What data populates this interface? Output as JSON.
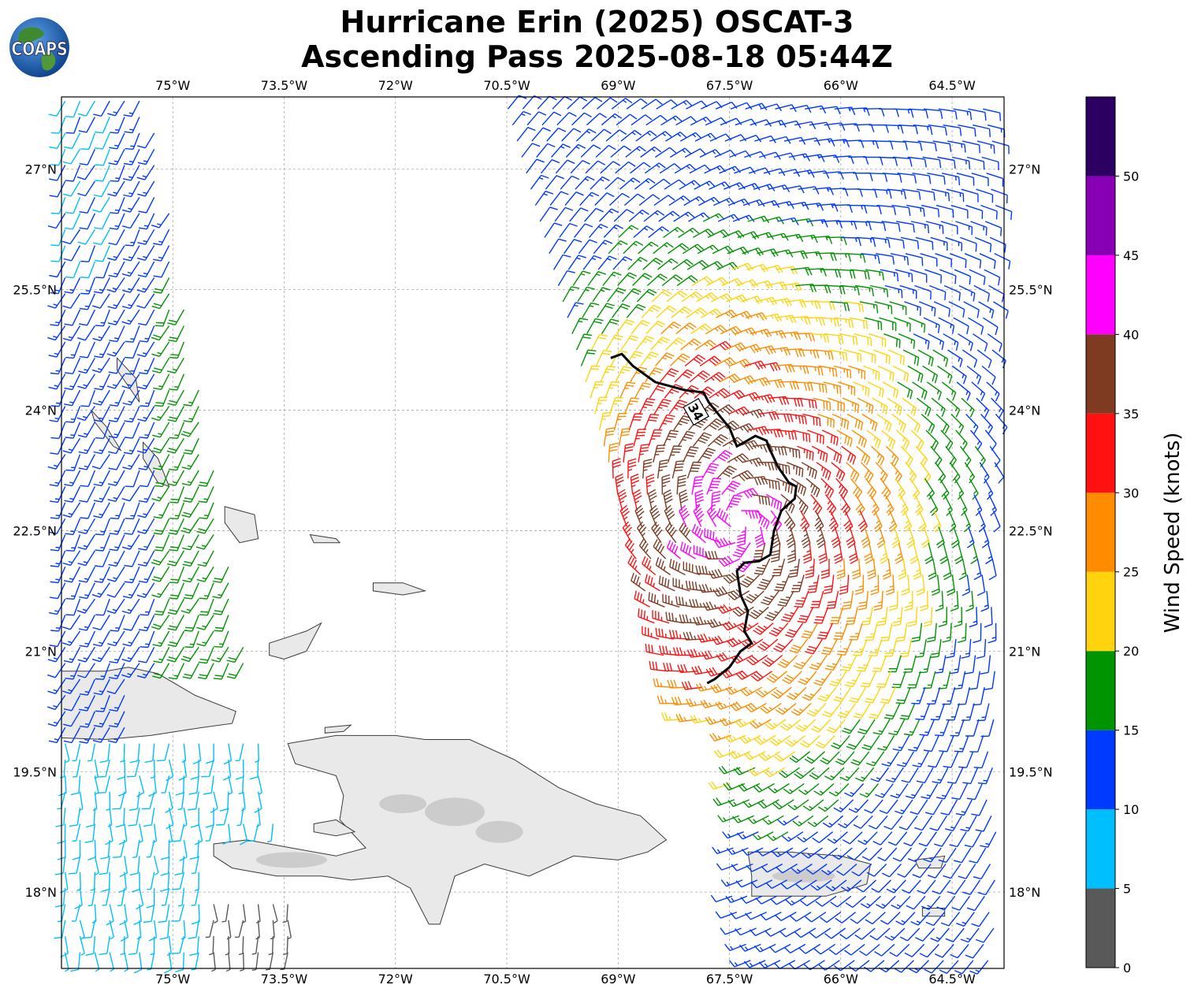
{
  "title": {
    "line1": "Hurricane Erin (2025) OSCAT-3",
    "line2": "Ascending Pass 2025-08-18 05:44Z"
  },
  "logo": {
    "text": "COAPS",
    "icon": "globe-logo-icon"
  },
  "map": {
    "lon_range": [
      -76.5,
      -63.8
    ],
    "lat_range": [
      17.05,
      27.9
    ],
    "lon_ticks": [
      {
        "v": -75,
        "label": "75°W"
      },
      {
        "v": -73.5,
        "label": "73.5°W"
      },
      {
        "v": -72,
        "label": "72°W"
      },
      {
        "v": -70.5,
        "label": "70.5°W"
      },
      {
        "v": -69,
        "label": "69°W"
      },
      {
        "v": -67.5,
        "label": "67.5°W"
      },
      {
        "v": -66,
        "label": "66°W"
      },
      {
        "v": -64.5,
        "label": "64.5°W"
      }
    ],
    "lat_ticks": [
      {
        "v": 27,
        "label": "27°N"
      },
      {
        "v": 25.5,
        "label": "25.5°N"
      },
      {
        "v": 24,
        "label": "24°N"
      },
      {
        "v": 22.5,
        "label": "22.5°N"
      },
      {
        "v": 21,
        "label": "21°N"
      },
      {
        "v": 19.5,
        "label": "19.5°N"
      },
      {
        "v": 18,
        "label": "18°N"
      }
    ],
    "gridlines": true,
    "contour_label": "34",
    "contour_34kt": [
      [
        -69.1,
        24.65
      ],
      [
        -68.95,
        24.7
      ],
      [
        -68.8,
        24.55
      ],
      [
        -68.5,
        24.35
      ],
      [
        -68.1,
        24.25
      ],
      [
        -67.85,
        24.22
      ],
      [
        -67.78,
        24.1
      ],
      [
        -67.65,
        23.95
      ],
      [
        -67.5,
        23.78
      ],
      [
        -67.4,
        23.55
      ],
      [
        -67.3,
        23.6
      ],
      [
        -67.15,
        23.68
      ],
      [
        -67.0,
        23.62
      ],
      [
        -66.95,
        23.5
      ],
      [
        -66.85,
        23.3
      ],
      [
        -66.7,
        23.1
      ],
      [
        -66.6,
        23.05
      ],
      [
        -66.62,
        22.9
      ],
      [
        -66.8,
        22.75
      ],
      [
        -66.9,
        22.5
      ],
      [
        -66.95,
        22.2
      ],
      [
        -67.1,
        22.12
      ],
      [
        -67.3,
        22.1
      ],
      [
        -67.4,
        22.0
      ],
      [
        -67.35,
        21.7
      ],
      [
        -67.25,
        21.5
      ],
      [
        -67.3,
        21.25
      ],
      [
        -67.2,
        21.1
      ],
      [
        -67.35,
        21.0
      ],
      [
        -67.5,
        20.8
      ],
      [
        -67.7,
        20.65
      ],
      [
        -67.8,
        20.6
      ]
    ]
  },
  "colorbar": {
    "label": "Wind Speed (knots)",
    "ticks": [
      "0",
      "5",
      "10",
      "15",
      "20",
      "25",
      "30",
      "35",
      "40",
      "45",
      "50"
    ],
    "bins": [
      {
        "min": 0,
        "max": 5,
        "color": "#595959"
      },
      {
        "min": 5,
        "max": 10,
        "color": "#00bfff"
      },
      {
        "min": 10,
        "max": 15,
        "color": "#0039ff"
      },
      {
        "min": 15,
        "max": 20,
        "color": "#009400"
      },
      {
        "min": 20,
        "max": 25,
        "color": "#ffd40f"
      },
      {
        "min": 25,
        "max": 30,
        "color": "#ff8c00"
      },
      {
        "min": 30,
        "max": 35,
        "color": "#ff1111"
      },
      {
        "min": 35,
        "max": 40,
        "color": "#7f3a22"
      },
      {
        "min": 40,
        "max": 45,
        "color": "#ff00ff"
      },
      {
        "min": 45,
        "max": 50,
        "color": "#8800b3"
      },
      {
        "min": 50,
        "max": 55,
        "color": "#2b0060"
      }
    ]
  }
}
